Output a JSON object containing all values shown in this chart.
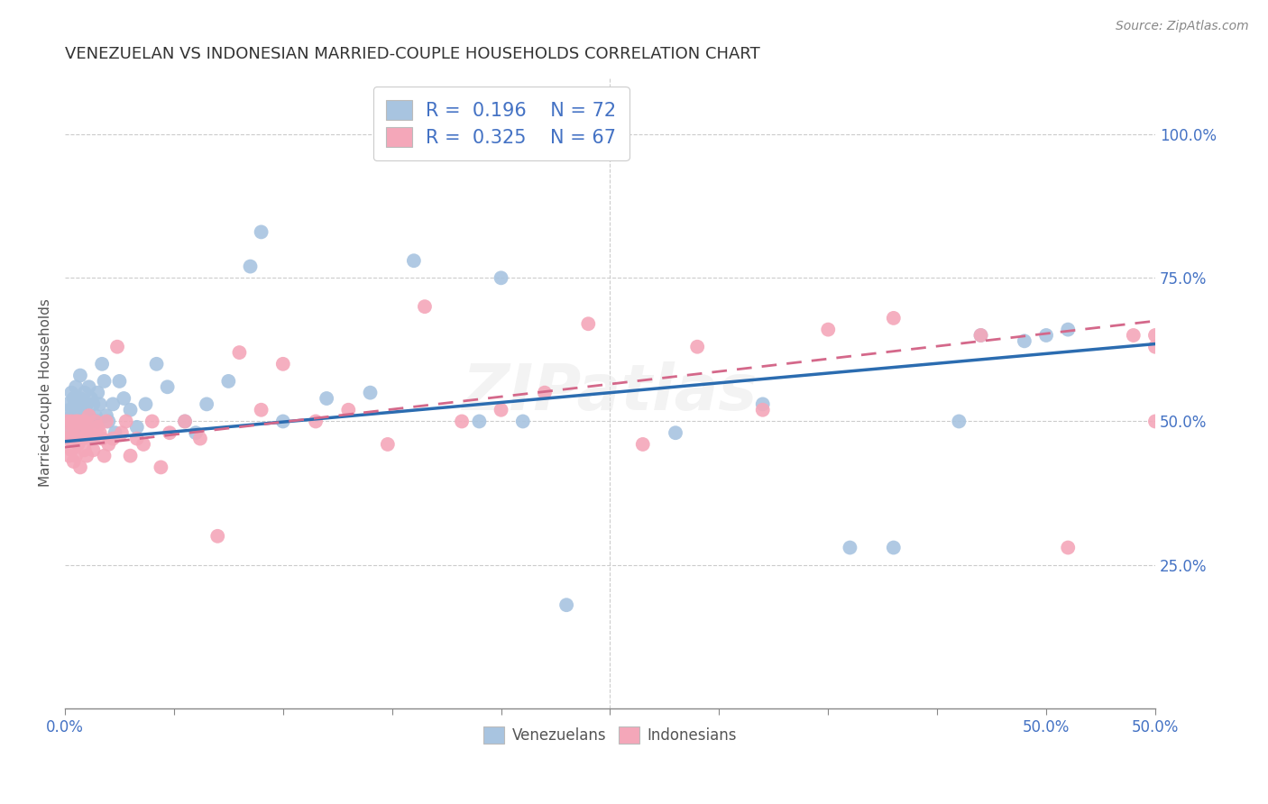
{
  "title": "VENEZUELAN VS INDONESIAN MARRIED-COUPLE HOUSEHOLDS CORRELATION CHART",
  "source": "Source: ZipAtlas.com",
  "ylabel": "Married-couple Households",
  "xlim": [
    0.0,
    0.5
  ],
  "ylim": [
    0.0,
    1.1
  ],
  "xticks": [
    0.0,
    0.05,
    0.1,
    0.15,
    0.2,
    0.25,
    0.3,
    0.35,
    0.4,
    0.45,
    0.5
  ],
  "xtick_labels_show": {
    "0.0": "0.0%",
    "0.5": "50.0%"
  },
  "yticks": [
    0.25,
    0.5,
    0.75,
    1.0
  ],
  "ytick_labels": [
    "25.0%",
    "50.0%",
    "75.0%",
    "100.0%"
  ],
  "venezuelan_color": "#a8c4e0",
  "indonesian_color": "#f4a7b9",
  "venezuelan_line_color": "#2b6cb0",
  "indonesian_line_color": "#d4688a",
  "R_venezuelan": 0.196,
  "N_venezuelan": 72,
  "R_indonesian": 0.325,
  "N_indonesian": 67,
  "legend_venezuelans": "Venezuelans",
  "legend_indonesians": "Indonesians",
  "ven_line_y0": 0.465,
  "ven_line_y1": 0.635,
  "ind_line_y0": 0.455,
  "ind_line_y1": 0.675,
  "venezuelan_x": [
    0.001,
    0.001,
    0.002,
    0.002,
    0.003,
    0.003,
    0.003,
    0.004,
    0.004,
    0.005,
    0.005,
    0.005,
    0.006,
    0.006,
    0.006,
    0.007,
    0.007,
    0.007,
    0.008,
    0.008,
    0.008,
    0.009,
    0.009,
    0.01,
    0.01,
    0.01,
    0.011,
    0.011,
    0.012,
    0.012,
    0.013,
    0.013,
    0.014,
    0.015,
    0.015,
    0.016,
    0.017,
    0.018,
    0.019,
    0.02,
    0.022,
    0.023,
    0.025,
    0.027,
    0.03,
    0.033,
    0.037,
    0.042,
    0.047,
    0.055,
    0.06,
    0.065,
    0.075,
    0.085,
    0.09,
    0.1,
    0.12,
    0.14,
    0.16,
    0.19,
    0.2,
    0.21,
    0.23,
    0.28,
    0.32,
    0.36,
    0.38,
    0.41,
    0.42,
    0.44,
    0.45,
    0.46
  ],
  "venezuelan_y": [
    0.5,
    0.53,
    0.52,
    0.48,
    0.51,
    0.55,
    0.47,
    0.5,
    0.54,
    0.52,
    0.49,
    0.56,
    0.5,
    0.53,
    0.47,
    0.54,
    0.51,
    0.58,
    0.5,
    0.53,
    0.48,
    0.52,
    0.55,
    0.5,
    0.53,
    0.48,
    0.56,
    0.51,
    0.54,
    0.5,
    0.53,
    0.47,
    0.51,
    0.55,
    0.5,
    0.53,
    0.6,
    0.57,
    0.51,
    0.5,
    0.53,
    0.48,
    0.57,
    0.54,
    0.52,
    0.49,
    0.53,
    0.6,
    0.56,
    0.5,
    0.48,
    0.53,
    0.57,
    0.77,
    0.83,
    0.5,
    0.54,
    0.55,
    0.78,
    0.5,
    0.75,
    0.5,
    0.18,
    0.48,
    0.53,
    0.28,
    0.28,
    0.5,
    0.65,
    0.64,
    0.65,
    0.66
  ],
  "indonesian_x": [
    0.001,
    0.001,
    0.002,
    0.002,
    0.003,
    0.003,
    0.004,
    0.004,
    0.005,
    0.005,
    0.005,
    0.006,
    0.006,
    0.007,
    0.007,
    0.008,
    0.008,
    0.009,
    0.009,
    0.01,
    0.01,
    0.011,
    0.011,
    0.012,
    0.013,
    0.014,
    0.015,
    0.016,
    0.017,
    0.018,
    0.019,
    0.02,
    0.022,
    0.024,
    0.026,
    0.028,
    0.03,
    0.033,
    0.036,
    0.04,
    0.044,
    0.048,
    0.055,
    0.062,
    0.07,
    0.08,
    0.09,
    0.1,
    0.115,
    0.13,
    0.148,
    0.165,
    0.182,
    0.2,
    0.22,
    0.24,
    0.265,
    0.29,
    0.32,
    0.35,
    0.38,
    0.42,
    0.46,
    0.49,
    0.5,
    0.5,
    0.5
  ],
  "indonesian_y": [
    0.47,
    0.5,
    0.44,
    0.48,
    0.5,
    0.45,
    0.49,
    0.43,
    0.5,
    0.47,
    0.44,
    0.5,
    0.46,
    0.48,
    0.42,
    0.5,
    0.47,
    0.45,
    0.5,
    0.49,
    0.44,
    0.48,
    0.51,
    0.47,
    0.45,
    0.5,
    0.49,
    0.48,
    0.47,
    0.44,
    0.5,
    0.46,
    0.47,
    0.63,
    0.48,
    0.5,
    0.44,
    0.47,
    0.46,
    0.5,
    0.42,
    0.48,
    0.5,
    0.47,
    0.3,
    0.62,
    0.52,
    0.6,
    0.5,
    0.52,
    0.46,
    0.7,
    0.5,
    0.52,
    0.55,
    0.67,
    0.46,
    0.63,
    0.52,
    0.66,
    0.68,
    0.65,
    0.28,
    0.65,
    0.63,
    0.5,
    0.65
  ]
}
